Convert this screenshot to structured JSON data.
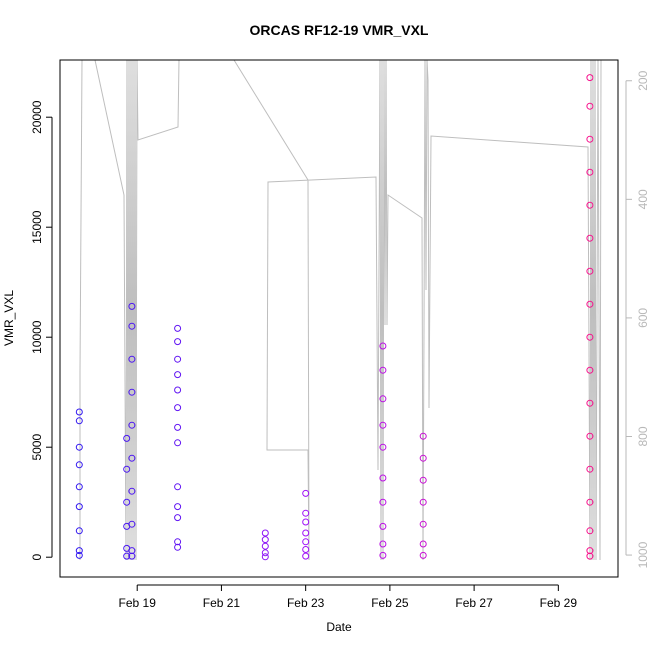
{
  "chart_data": {
    "type": "scatter",
    "title": "ORCAS RF12-19 VMR_VXL",
    "xlabel": "Date",
    "ylabel": "VMR_VXL",
    "xlim": [
      "2016-02-17T04:00",
      "2016-03-01T10:00"
    ],
    "ylim": [
      -900,
      22600
    ],
    "y2lim": [
      1037,
      165
    ],
    "y2_reversed": true,
    "x_ticks": [
      {
        "date": "2016-02-19",
        "label": "Feb 19"
      },
      {
        "date": "2016-02-21",
        "label": "Feb 21"
      },
      {
        "date": "2016-02-23",
        "label": "Feb 23"
      },
      {
        "date": "2016-02-25",
        "label": "Feb 25"
      },
      {
        "date": "2016-02-27",
        "label": "Feb 27"
      },
      {
        "date": "2016-02-29",
        "label": "Feb 29"
      }
    ],
    "y_ticks": [
      0,
      5000,
      10000,
      15000,
      20000
    ],
    "y2_ticks": [
      200,
      400,
      600,
      800,
      1000
    ],
    "grid": false,
    "colors": {
      "rf12": "#2a1af0",
      "rf19": "#ff1080",
      "pressure_line": "#bebebe"
    },
    "series": [
      {
        "values": [
          {
            "x": "2016-02-17T15:00",
            "y": 6600
          },
          {
            "x": "2016-02-17T15:00",
            "y": 6200
          },
          {
            "x": "2016-02-17T15:00",
            "y": 5000
          },
          {
            "x": "2016-02-17T15:00",
            "y": 4200
          },
          {
            "x": "2016-02-17T15:00",
            "y": 3200
          },
          {
            "x": "2016-02-17T15:00",
            "y": 2300
          },
          {
            "x": "2016-02-17T15:00",
            "y": 1200
          },
          {
            "x": "2016-02-17T15:00",
            "y": 300
          },
          {
            "x": "2016-02-17T15:00",
            "y": 80
          },
          {
            "x": "2016-02-18T18:00",
            "y": 5400
          },
          {
            "x": "2016-02-18T18:00",
            "y": 4000
          },
          {
            "x": "2016-02-18T18:00",
            "y": 2500
          },
          {
            "x": "2016-02-18T18:00",
            "y": 1400
          },
          {
            "x": "2016-02-18T18:00",
            "y": 400
          },
          {
            "x": "2016-02-18T18:00",
            "y": 50
          },
          {
            "x": "2016-02-18T21:00",
            "y": 11400
          },
          {
            "x": "2016-02-18T21:00",
            "y": 10500
          },
          {
            "x": "2016-02-18T21:00",
            "y": 9000
          },
          {
            "x": "2016-02-18T21:00",
            "y": 7500
          },
          {
            "x": "2016-02-18T21:00",
            "y": 6000
          },
          {
            "x": "2016-02-18T21:00",
            "y": 4500
          },
          {
            "x": "2016-02-18T21:00",
            "y": 3000
          },
          {
            "x": "2016-02-18T21:00",
            "y": 1500
          },
          {
            "x": "2016-02-18T21:00",
            "y": 300
          },
          {
            "x": "2016-02-18T21:00",
            "y": 50
          }
        ]
      },
      {
        "values": [
          {
            "x": "2016-02-19T23:00",
            "y": 10400
          },
          {
            "x": "2016-02-19T23:00",
            "y": 9800
          },
          {
            "x": "2016-02-19T23:00",
            "y": 9000
          },
          {
            "x": "2016-02-19T23:00",
            "y": 8300
          },
          {
            "x": "2016-02-19T23:00",
            "y": 7600
          },
          {
            "x": "2016-02-19T23:00",
            "y": 6800
          },
          {
            "x": "2016-02-19T23:00",
            "y": 5900
          },
          {
            "x": "2016-02-19T23:00",
            "y": 5200
          },
          {
            "x": "2016-02-19T23:00",
            "y": 3200
          },
          {
            "x": "2016-02-19T23:00",
            "y": 2300
          },
          {
            "x": "2016-02-19T23:00",
            "y": 1800
          },
          {
            "x": "2016-02-19T23:00",
            "y": 700
          },
          {
            "x": "2016-02-19T23:00",
            "y": 450
          }
        ]
      },
      {
        "values": [
          {
            "x": "2016-02-22T01:00",
            "y": 1100
          },
          {
            "x": "2016-02-22T01:00",
            "y": 800
          },
          {
            "x": "2016-02-22T01:00",
            "y": 500
          },
          {
            "x": "2016-02-22T01:00",
            "y": 200
          },
          {
            "x": "2016-02-22T01:00",
            "y": 20
          }
        ]
      },
      {
        "values": [
          {
            "x": "2016-02-23T00:00",
            "y": 2900
          },
          {
            "x": "2016-02-23T00:00",
            "y": 2000
          },
          {
            "x": "2016-02-23T00:00",
            "y": 1600
          },
          {
            "x": "2016-02-23T00:00",
            "y": 1100
          },
          {
            "x": "2016-02-23T00:00",
            "y": 700
          },
          {
            "x": "2016-02-23T00:00",
            "y": 350
          },
          {
            "x": "2016-02-23T00:00",
            "y": 50
          }
        ]
      },
      {
        "values": [
          {
            "x": "2016-02-24T20:00",
            "y": 9600
          },
          {
            "x": "2016-02-24T20:00",
            "y": 8500
          },
          {
            "x": "2016-02-24T20:00",
            "y": 7200
          },
          {
            "x": "2016-02-24T20:00",
            "y": 6000
          },
          {
            "x": "2016-02-24T20:00",
            "y": 5000
          },
          {
            "x": "2016-02-24T20:00",
            "y": 3600
          },
          {
            "x": "2016-02-24T20:00",
            "y": 2500
          },
          {
            "x": "2016-02-24T20:00",
            "y": 1400
          },
          {
            "x": "2016-02-24T20:00",
            "y": 600
          },
          {
            "x": "2016-02-24T20:00",
            "y": 80
          },
          {
            "x": "2016-02-25T19:00",
            "y": 5500
          },
          {
            "x": "2016-02-25T19:00",
            "y": 4500
          },
          {
            "x": "2016-02-25T19:00",
            "y": 3500
          },
          {
            "x": "2016-02-25T19:00",
            "y": 2500
          },
          {
            "x": "2016-02-25T19:00",
            "y": 1500
          },
          {
            "x": "2016-02-25T19:00",
            "y": 600
          },
          {
            "x": "2016-02-25T19:00",
            "y": 80
          }
        ]
      },
      {
        "values": [
          {
            "x": "2016-02-29T18:00",
            "y": 21800
          },
          {
            "x": "2016-02-29T18:00",
            "y": 20500
          },
          {
            "x": "2016-02-29T18:00",
            "y": 19000
          },
          {
            "x": "2016-02-29T18:00",
            "y": 17500
          },
          {
            "x": "2016-02-29T18:00",
            "y": 16000
          },
          {
            "x": "2016-02-29T18:00",
            "y": 14500
          },
          {
            "x": "2016-02-29T18:00",
            "y": 13000
          },
          {
            "x": "2016-02-29T18:00",
            "y": 11500
          },
          {
            "x": "2016-02-29T18:00",
            "y": 10000
          },
          {
            "x": "2016-02-29T18:00",
            "y": 8500
          },
          {
            "x": "2016-02-29T18:00",
            "y": 7000
          },
          {
            "x": "2016-02-29T18:00",
            "y": 5500
          },
          {
            "x": "2016-02-29T18:00",
            "y": 4000
          },
          {
            "x": "2016-02-29T18:00",
            "y": 2500
          },
          {
            "x": "2016-02-29T18:00",
            "y": 1200
          },
          {
            "x": "2016-02-29T18:00",
            "y": 300
          },
          {
            "x": "2016-02-29T18:00",
            "y": 50
          }
        ]
      }
    ]
  }
}
